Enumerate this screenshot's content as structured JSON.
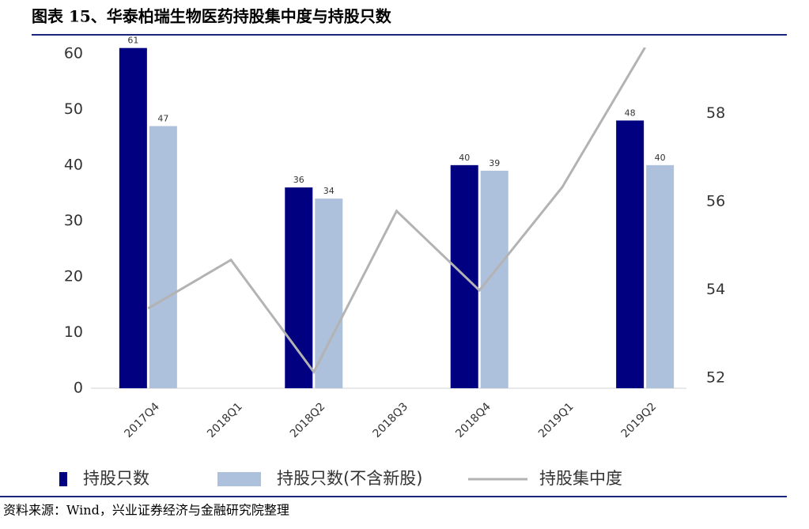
{
  "chart_data": {
    "type": "bar",
    "title": "图表 15、华泰柏瑞生物医药持股集中度与持股只数",
    "categories": [
      "2017Q4",
      "2018Q1",
      "2018Q2",
      "2018Q3",
      "2018Q4",
      "2019Q1",
      "2019Q2"
    ],
    "series": [
      {
        "name": "持股只数",
        "type": "bar",
        "color": "#000080",
        "values": [
          61,
          null,
          36,
          null,
          40,
          null,
          48
        ]
      },
      {
        "name": "持股只数(不含新股)",
        "type": "bar",
        "color": "#adc0dc",
        "values": [
          47,
          null,
          34,
          null,
          39,
          null,
          40
        ]
      },
      {
        "name": "持股集中度",
        "type": "line",
        "axis": "y2",
        "color": "#b3b3b3",
        "values": [
          53.58,
          54.68,
          52.14,
          55.79,
          53.99,
          56.33,
          59.5
        ]
      }
    ],
    "ylim": [
      0,
      61.1
    ],
    "yticks": [
      0,
      10,
      20,
      30,
      40,
      50,
      60
    ],
    "y2lim": [
      51.77,
      59.5
    ],
    "y2ticks": [
      52,
      54,
      56,
      58
    ],
    "legend": "bottom",
    "source": "资料来源：Wind，兴业证券经济与金融研究院整理"
  }
}
